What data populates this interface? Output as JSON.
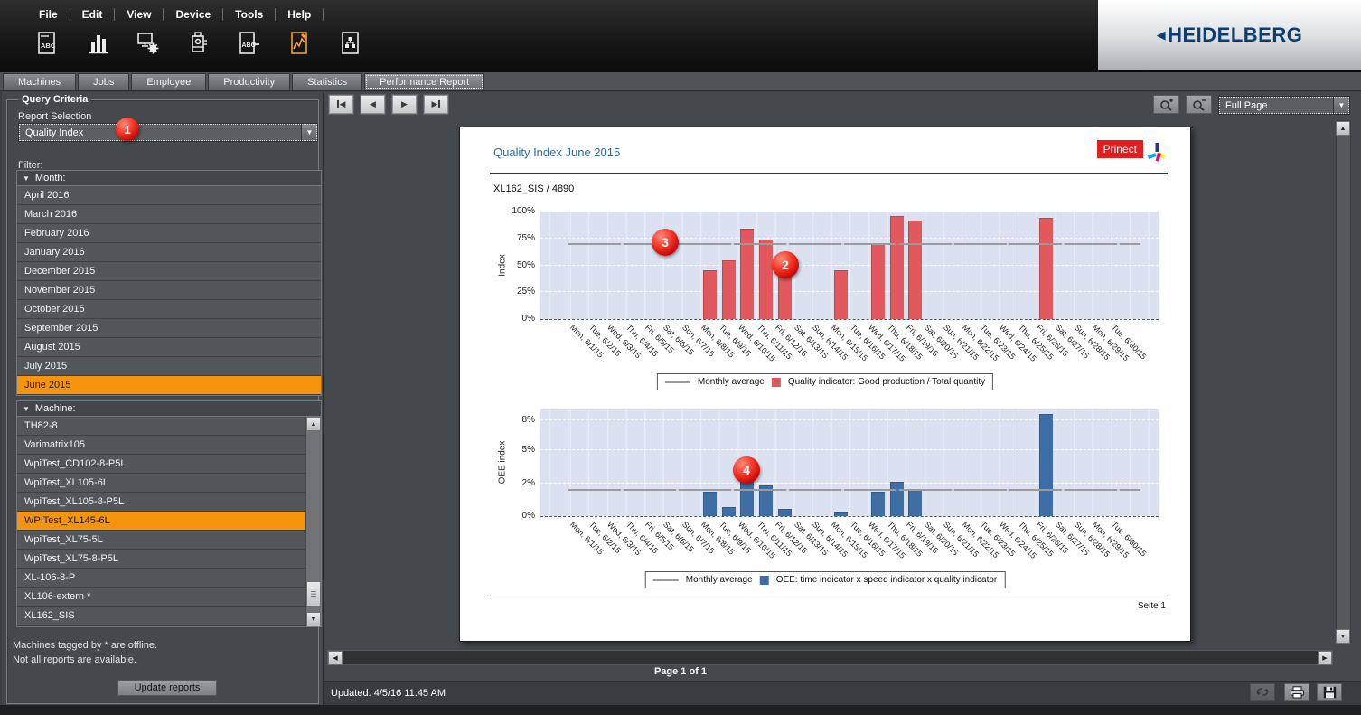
{
  "menu": {
    "items": [
      "File",
      "Edit",
      "View",
      "Device",
      "Tools",
      "Help"
    ]
  },
  "toolbar": {
    "icons": [
      {
        "name": "report-abc-document-icon",
        "active": false
      },
      {
        "name": "bar-chart-icon",
        "active": false
      },
      {
        "name": "computer-settings-icon",
        "active": false
      },
      {
        "name": "press-machine-icon",
        "active": false
      },
      {
        "name": "report-import-icon",
        "active": false
      },
      {
        "name": "performance-chart-icon",
        "active": true
      },
      {
        "name": "process-document-icon",
        "active": false
      }
    ]
  },
  "brand": {
    "name": "HEIDELBERG",
    "color": "#0b3e78"
  },
  "tabs": {
    "items": [
      {
        "label": "Machines",
        "active": false
      },
      {
        "label": "Jobs",
        "active": false
      },
      {
        "label": "Employee",
        "active": false
      },
      {
        "label": "Productivity",
        "active": false
      },
      {
        "label": "Statistics",
        "active": false
      },
      {
        "label": "Performance Report",
        "active": true
      }
    ]
  },
  "sidebar": {
    "group_title": "Query Criteria",
    "report_selection_label": "Report Selection",
    "report_selection_value": "Quality Index",
    "filter_label": "Filter:",
    "month_header": "Month:",
    "months": [
      "April 2016",
      "March 2016",
      "February 2016",
      "January 2016",
      "December 2015",
      "November 2015",
      "October 2015",
      "September 2015",
      "August 2015",
      "July 2015",
      "June 2015"
    ],
    "selected_month": "June 2015",
    "machine_header": "Machine:",
    "machines": [
      "TH82-8",
      "Varimatrix105",
      "WpiTest_CD102-8-P5L",
      "WpiTest_XL105-6L",
      "WpiTest_XL105-8-P5L",
      "WPITest_XL145-6L",
      "WpiTest_XL75-5L",
      "WpiTest_XL75-8-P5L",
      "XL-106-8-P",
      "XL106-extern *",
      "XL162_SIS"
    ],
    "selected_machine": "WPITest_XL145-6L",
    "note_line1": "Machines tagged by * are offline.",
    "note_line2": "Not all reports are available.",
    "update_button": "Update reports"
  },
  "viewer": {
    "zoom_level": "Full Page",
    "page_indicator": "Page 1 of 1",
    "status_updated": "Updated: 4/5/16 11:45 AM"
  },
  "report": {
    "title": "Quality Index June 2015",
    "machine_line": "XL162_SIS / 4890",
    "brand_badge": "Prinect",
    "page_label": "Seite 1"
  },
  "callouts": {
    "one": "1",
    "two": "2",
    "three": "3",
    "four": "4"
  },
  "chart_data": [
    {
      "type": "bar",
      "title": "Quality Index June 2015",
      "ylabel": "Index",
      "ylim": [
        0,
        100
      ],
      "yticks": [
        {
          "value": 0,
          "label": "0%"
        },
        {
          "value": 25,
          "label": "25%"
        },
        {
          "value": 50,
          "label": "50%"
        },
        {
          "value": 75,
          "label": "75%"
        },
        {
          "value": 100,
          "label": "100%"
        }
      ],
      "monthly_average": 70,
      "legend": [
        "Monthly average",
        "Quality indicator: Good production / Total quantity"
      ],
      "bar_color": "#e2595d",
      "average_line_color": "#9b9b9b",
      "grid": true,
      "legend_position": "bottom",
      "categories": [
        "Mon, 6/1/15",
        "Tue, 6/2/15",
        "Wed, 6/3/15",
        "Thu, 6/4/15",
        "Fri, 6/5/15",
        "Sat, 6/6/15",
        "Sun, 6/7/15",
        "Mon, 6/8/15",
        "Tue, 6/9/15",
        "Wed, 6/10/15",
        "Thu, 6/11/15",
        "Fri, 6/12/15",
        "Sat, 6/13/15",
        "Sun, 6/14/15",
        "Mon, 6/15/15",
        "Tue, 6/16/15",
        "Wed, 6/17/15",
        "Thu, 6/18/15",
        "Fri, 6/19/15",
        "Sat, 6/20/15",
        "Sun, 6/21/15",
        "Mon, 6/22/15",
        "Tue, 6/23/15",
        "Wed, 6/24/15",
        "Thu, 6/25/15",
        "Fri, 6/26/15",
        "Sat, 6/27/15",
        "Sun, 6/28/15",
        "Mon, 6/29/15",
        "Tue, 6/30/15"
      ],
      "values": [
        null,
        null,
        null,
        null,
        null,
        null,
        null,
        45,
        55,
        84,
        74,
        52,
        null,
        null,
        45,
        null,
        70,
        96,
        92,
        null,
        null,
        null,
        null,
        null,
        null,
        94,
        null,
        null,
        null,
        null
      ]
    },
    {
      "type": "bar",
      "title": "OEE June 2015",
      "ylabel": "OEE index",
      "ylim": [
        0,
        9
      ],
      "yticks": [
        {
          "value": 0,
          "label": "0%"
        },
        {
          "value": 2,
          "label": "2%"
        },
        {
          "value": 5,
          "label": "5%"
        },
        {
          "value": 8,
          "label": "8%"
        }
      ],
      "monthly_average": 1.6,
      "legend": [
        "Monthly average",
        "OEE: time indicator x speed indicator x quality indicator"
      ],
      "bar_color": "#3d6fa6",
      "average_line_color": "#9b9b9b",
      "grid": true,
      "legend_position": "bottom",
      "categories": [
        "Mon, 6/1/15",
        "Tue, 6/2/15",
        "Wed, 6/3/15",
        "Thu, 6/4/15",
        "Fri, 6/5/15",
        "Sat, 6/6/15",
        "Sun, 6/7/15",
        "Mon, 6/8/15",
        "Tue, 6/9/15",
        "Wed, 6/10/15",
        "Thu, 6/11/15",
        "Fri, 6/12/15",
        "Sat, 6/13/15",
        "Sun, 6/14/15",
        "Mon, 6/15/15",
        "Tue, 6/16/15",
        "Wed, 6/17/15",
        "Thu, 6/18/15",
        "Fri, 6/19/15",
        "Sat, 6/20/15",
        "Sun, 6/21/15",
        "Mon, 6/22/15",
        "Tue, 6/23/15",
        "Wed, 6/24/15",
        "Thu, 6/25/15",
        "Fri, 6/26/15",
        "Sat, 6/27/15",
        "Sun, 6/28/15",
        "Mon, 6/29/15",
        "Tue, 6/30/15"
      ],
      "values": [
        null,
        null,
        null,
        null,
        null,
        null,
        null,
        1.5,
        0.55,
        2.8,
        1.9,
        0.45,
        null,
        null,
        0.3,
        null,
        1.5,
        2.2,
        1.65,
        null,
        null,
        null,
        null,
        null,
        null,
        8.6,
        null,
        null,
        null,
        null
      ]
    }
  ]
}
